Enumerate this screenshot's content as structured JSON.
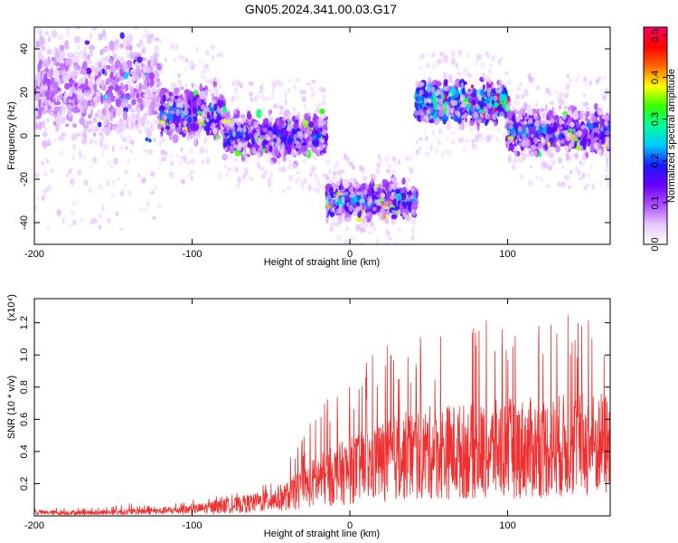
{
  "figure": {
    "title": "GN05.2024.341.00.03.G17"
  },
  "chart_data": [
    {
      "type": "heatmap",
      "title": "GN05.2024.341.00.03.G17",
      "xlabel": "Height of straight line (km)",
      "ylabel": "Frequency (Hz)",
      "xlim": [
        -200,
        165
      ],
      "ylim": [
        -50,
        50
      ],
      "x_ticks": [
        -200,
        -100,
        0,
        100
      ],
      "y_ticks": [
        -40,
        -20,
        0,
        20,
        40
      ],
      "colorbar": {
        "label": "Normalized spectral amplitude",
        "range": [
          0.0,
          0.52
        ],
        "ticks": [
          0.0,
          0.1,
          0.2,
          0.3,
          0.4,
          0.5
        ],
        "colormap": [
          "#ffffff",
          "#e6c8ff",
          "#b04dff",
          "#6a00ff",
          "#1a1aff",
          "#00c8ff",
          "#00ff9a",
          "#33ff00",
          "#ffff00",
          "#ff6a00",
          "#ff0000",
          "#ff0066"
        ]
      },
      "grid": false,
      "segments": [
        {
          "x_range": [
            -200,
            -120
          ],
          "center_hz": 22,
          "spread_hz": 25,
          "level": 0.08
        },
        {
          "x_range": [
            -120,
            -80
          ],
          "center_hz": 10,
          "spread_hz": 12,
          "level": 0.17
        },
        {
          "x_range": [
            -80,
            -15
          ],
          "center_hz": 0,
          "spread_hz": 10,
          "level": 0.16
        },
        {
          "x_range": [
            -15,
            42
          ],
          "center_hz": -30,
          "spread_hz": 8,
          "level": 0.19
        },
        {
          "x_range": [
            42,
            100
          ],
          "center_hz": 15,
          "spread_hz": 9,
          "level": 0.26
        },
        {
          "x_range": [
            100,
            165
          ],
          "center_hz": 2,
          "spread_hz": 10,
          "level": 0.17
        }
      ],
      "series_color": "#6a00ff"
    },
    {
      "type": "line",
      "xlabel": "Height of straight line (km)",
      "ylabel": "SNR (10 * v/v)",
      "y_multiplier": "(x10⁴)",
      "xlim": [
        -200,
        165
      ],
      "ylim": [
        0.0,
        1.35
      ],
      "x_ticks": [
        -200,
        -100,
        0,
        100
      ],
      "y_ticks": [
        0.2,
        0.4,
        0.6,
        0.8,
        1.0,
        1.2
      ],
      "grid": false,
      "color": "#ee3030",
      "envelope": {
        "x": [
          -200,
          -160,
          -140,
          -120,
          -100,
          -80,
          -60,
          -40,
          -20,
          0,
          20,
          40,
          60,
          80,
          100,
          120,
          140,
          165
        ],
        "typical": [
          0.02,
          0.02,
          0.025,
          0.03,
          0.04,
          0.06,
          0.08,
          0.12,
          0.22,
          0.28,
          0.34,
          0.38,
          0.4,
          0.4,
          0.42,
          0.42,
          0.44,
          0.44
        ],
        "peak": [
          0.05,
          0.05,
          0.08,
          0.06,
          0.1,
          0.13,
          0.16,
          0.32,
          0.68,
          0.9,
          1.05,
          1.1,
          1.15,
          1.2,
          1.25,
          1.25,
          1.3,
          1.3
        ]
      }
    }
  ]
}
